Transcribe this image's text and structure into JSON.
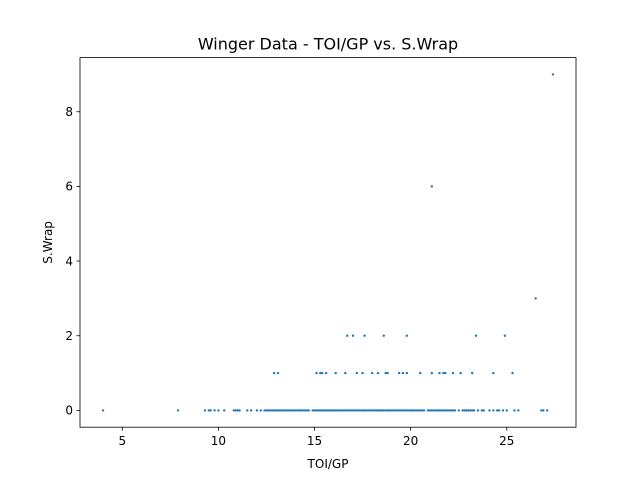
{
  "chart_data": {
    "type": "scatter",
    "title": "Winger Data - TOI/GP vs. S.Wrap",
    "xlabel": "TOI/GP",
    "ylabel": "S.Wrap",
    "xlim": [
      2.8,
      28.6
    ],
    "ylim": [
      -0.45,
      9.45
    ],
    "xticks": [
      5,
      10,
      15,
      20,
      25
    ],
    "yticks": [
      0,
      2,
      4,
      6,
      8
    ],
    "grid": false,
    "legend": "none",
    "marker_color": "#1f77b4",
    "series": [
      {
        "points": [
          [
            4.0,
            0
          ],
          [
            7.9,
            0
          ],
          [
            9.3,
            0
          ],
          [
            9.5,
            0
          ],
          [
            9.6,
            0
          ],
          [
            9.8,
            0
          ],
          [
            10.0,
            0
          ],
          [
            10.3,
            0
          ],
          [
            10.8,
            0
          ],
          [
            10.9,
            0
          ],
          [
            11.0,
            0
          ],
          [
            11.1,
            0
          ],
          [
            11.5,
            0
          ],
          [
            11.7,
            0
          ],
          [
            12.0,
            0
          ],
          [
            12.2,
            0
          ],
          [
            12.4,
            0
          ],
          [
            12.5,
            0
          ],
          [
            12.6,
            0
          ],
          [
            12.7,
            0
          ],
          [
            12.8,
            0
          ],
          [
            12.9,
            0
          ],
          [
            13.0,
            0
          ],
          [
            13.1,
            0
          ],
          [
            13.2,
            0
          ],
          [
            13.3,
            0
          ],
          [
            13.4,
            0
          ],
          [
            13.5,
            0
          ],
          [
            13.6,
            0
          ],
          [
            13.7,
            0
          ],
          [
            13.8,
            0
          ],
          [
            13.9,
            0
          ],
          [
            14.0,
            0
          ],
          [
            14.1,
            0
          ],
          [
            14.2,
            0
          ],
          [
            14.3,
            0
          ],
          [
            14.4,
            0
          ],
          [
            14.5,
            0
          ],
          [
            14.6,
            0
          ],
          [
            14.7,
            0
          ],
          [
            14.9,
            0
          ],
          [
            15.0,
            0
          ],
          [
            15.1,
            0
          ],
          [
            15.2,
            0
          ],
          [
            15.3,
            0
          ],
          [
            15.4,
            0
          ],
          [
            15.5,
            0
          ],
          [
            15.6,
            0
          ],
          [
            15.7,
            0
          ],
          [
            15.8,
            0
          ],
          [
            15.9,
            0
          ],
          [
            16.0,
            0
          ],
          [
            16.1,
            0
          ],
          [
            16.2,
            0
          ],
          [
            16.3,
            0
          ],
          [
            16.4,
            0
          ],
          [
            16.5,
            0
          ],
          [
            16.6,
            0
          ],
          [
            16.7,
            0
          ],
          [
            16.8,
            0
          ],
          [
            16.9,
            0
          ],
          [
            17.0,
            0
          ],
          [
            17.1,
            0
          ],
          [
            17.2,
            0
          ],
          [
            17.3,
            0
          ],
          [
            17.4,
            0
          ],
          [
            17.5,
            0
          ],
          [
            17.6,
            0
          ],
          [
            17.7,
            0
          ],
          [
            17.8,
            0
          ],
          [
            17.9,
            0
          ],
          [
            18.0,
            0
          ],
          [
            18.1,
            0
          ],
          [
            18.2,
            0
          ],
          [
            18.3,
            0
          ],
          [
            18.4,
            0
          ],
          [
            18.5,
            0
          ],
          [
            18.6,
            0
          ],
          [
            18.7,
            0
          ],
          [
            18.8,
            0
          ],
          [
            18.9,
            0
          ],
          [
            19.0,
            0
          ],
          [
            19.1,
            0
          ],
          [
            19.2,
            0
          ],
          [
            19.3,
            0
          ],
          [
            19.4,
            0
          ],
          [
            19.5,
            0
          ],
          [
            19.6,
            0
          ],
          [
            19.7,
            0
          ],
          [
            19.8,
            0
          ],
          [
            19.9,
            0
          ],
          [
            20.0,
            0
          ],
          [
            20.1,
            0
          ],
          [
            20.2,
            0
          ],
          [
            20.3,
            0
          ],
          [
            20.4,
            0
          ],
          [
            20.5,
            0
          ],
          [
            20.6,
            0
          ],
          [
            20.7,
            0
          ],
          [
            20.9,
            0
          ],
          [
            21.0,
            0
          ],
          [
            21.1,
            0
          ],
          [
            21.2,
            0
          ],
          [
            21.3,
            0
          ],
          [
            21.4,
            0
          ],
          [
            21.5,
            0
          ],
          [
            21.6,
            0
          ],
          [
            21.7,
            0
          ],
          [
            21.8,
            0
          ],
          [
            21.9,
            0
          ],
          [
            22.0,
            0
          ],
          [
            22.1,
            0
          ],
          [
            22.2,
            0
          ],
          [
            22.3,
            0
          ],
          [
            22.5,
            0
          ],
          [
            22.7,
            0
          ],
          [
            22.8,
            0
          ],
          [
            22.9,
            0
          ],
          [
            23.0,
            0
          ],
          [
            23.1,
            0
          ],
          [
            23.2,
            0
          ],
          [
            23.3,
            0
          ],
          [
            23.5,
            0
          ],
          [
            23.7,
            0
          ],
          [
            23.8,
            0
          ],
          [
            24.1,
            0
          ],
          [
            24.3,
            0
          ],
          [
            24.5,
            0
          ],
          [
            24.6,
            0
          ],
          [
            24.8,
            0
          ],
          [
            25.0,
            0
          ],
          [
            25.4,
            0
          ],
          [
            25.6,
            0
          ],
          [
            26.8,
            0
          ],
          [
            26.9,
            0
          ],
          [
            27.1,
            0
          ],
          [
            12.9,
            1
          ],
          [
            13.1,
            1
          ],
          [
            15.1,
            1
          ],
          [
            15.3,
            1
          ],
          [
            15.4,
            1
          ],
          [
            15.6,
            1
          ],
          [
            16.1,
            1
          ],
          [
            16.6,
            1
          ],
          [
            17.2,
            1
          ],
          [
            17.5,
            1
          ],
          [
            18.0,
            1
          ],
          [
            18.3,
            1
          ],
          [
            18.7,
            1
          ],
          [
            18.8,
            1
          ],
          [
            19.4,
            1
          ],
          [
            19.6,
            1
          ],
          [
            19.8,
            1
          ],
          [
            20.5,
            1
          ],
          [
            21.1,
            1
          ],
          [
            21.5,
            1
          ],
          [
            21.7,
            1
          ],
          [
            21.8,
            1
          ],
          [
            22.2,
            1
          ],
          [
            22.6,
            1
          ],
          [
            23.2,
            1
          ],
          [
            24.3,
            1
          ],
          [
            25.3,
            1
          ],
          [
            16.7,
            2
          ],
          [
            17.0,
            2
          ],
          [
            17.6,
            2
          ],
          [
            18.6,
            2
          ],
          [
            19.8,
            2
          ],
          [
            23.4,
            2
          ],
          [
            24.9,
            2
          ],
          [
            26.5,
            3
          ],
          [
            21.1,
            6
          ],
          [
            27.4,
            9
          ]
        ]
      }
    ]
  }
}
